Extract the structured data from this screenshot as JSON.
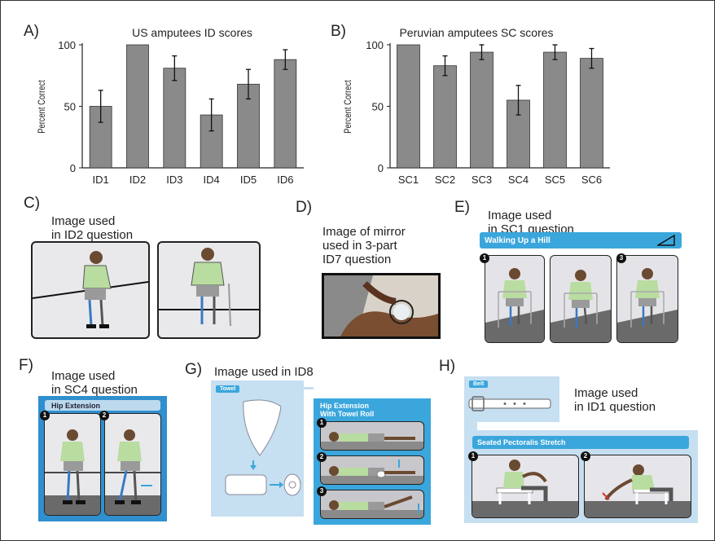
{
  "panels": {
    "a": "A)",
    "b": "B)",
    "c": "C)",
    "d": "D)",
    "e": "E)",
    "f": "F)",
    "g": "G)",
    "h": "H)"
  },
  "captions": {
    "c": [
      "Image used",
      "in ID2 question"
    ],
    "d": [
      "Image of mirror",
      "used in 3-part",
      "ID7 question"
    ],
    "e": [
      "Image used",
      "in SC1 question"
    ],
    "f": [
      "Image used",
      "in SC4 question"
    ],
    "g": "Image used in ID8",
    "h": [
      "Image used",
      "in ID1 question"
    ]
  },
  "illustration_text": {
    "e_banner": "Walking Up a Hill",
    "f_banner": "Hip Extension",
    "g_towel_tag": "Towel",
    "g_banner": [
      "Hip Extension",
      "With Towel Roll"
    ],
    "h_belt_tag": "Belt",
    "h_banner": "Seated Pectoralis Stretch",
    "step_numbers": [
      "1",
      "2",
      "3"
    ]
  },
  "colors": {
    "bar": "#8a8a8a",
    "accent_blue": "#3aa6dc",
    "light_blue": "#bcd9ee",
    "shirt_green": "#b9dca0"
  },
  "chart_data": [
    {
      "type": "bar",
      "title": "US amputees ID scores",
      "ylabel": "Percent Correct",
      "categories": [
        "ID1",
        "ID2",
        "ID3",
        "ID4",
        "ID5",
        "ID6"
      ],
      "values": [
        50,
        100,
        81,
        43,
        68,
        88
      ],
      "error": [
        13,
        0,
        10,
        13,
        12,
        8
      ],
      "yticks": [
        0,
        50,
        100
      ],
      "ylim": [
        0,
        100
      ],
      "grid": false
    },
    {
      "type": "bar",
      "title": "Peruvian amputees SC scores",
      "ylabel": "Percent Correct",
      "categories": [
        "SC1",
        "SC2",
        "SC3",
        "SC4",
        "SC5",
        "SC6"
      ],
      "values": [
        100,
        83,
        94,
        55,
        94,
        89
      ],
      "error": [
        0,
        8,
        6,
        12,
        6,
        8
      ],
      "yticks": [
        0,
        50,
        100
      ],
      "ylim": [
        0,
        100
      ],
      "grid": false
    }
  ]
}
